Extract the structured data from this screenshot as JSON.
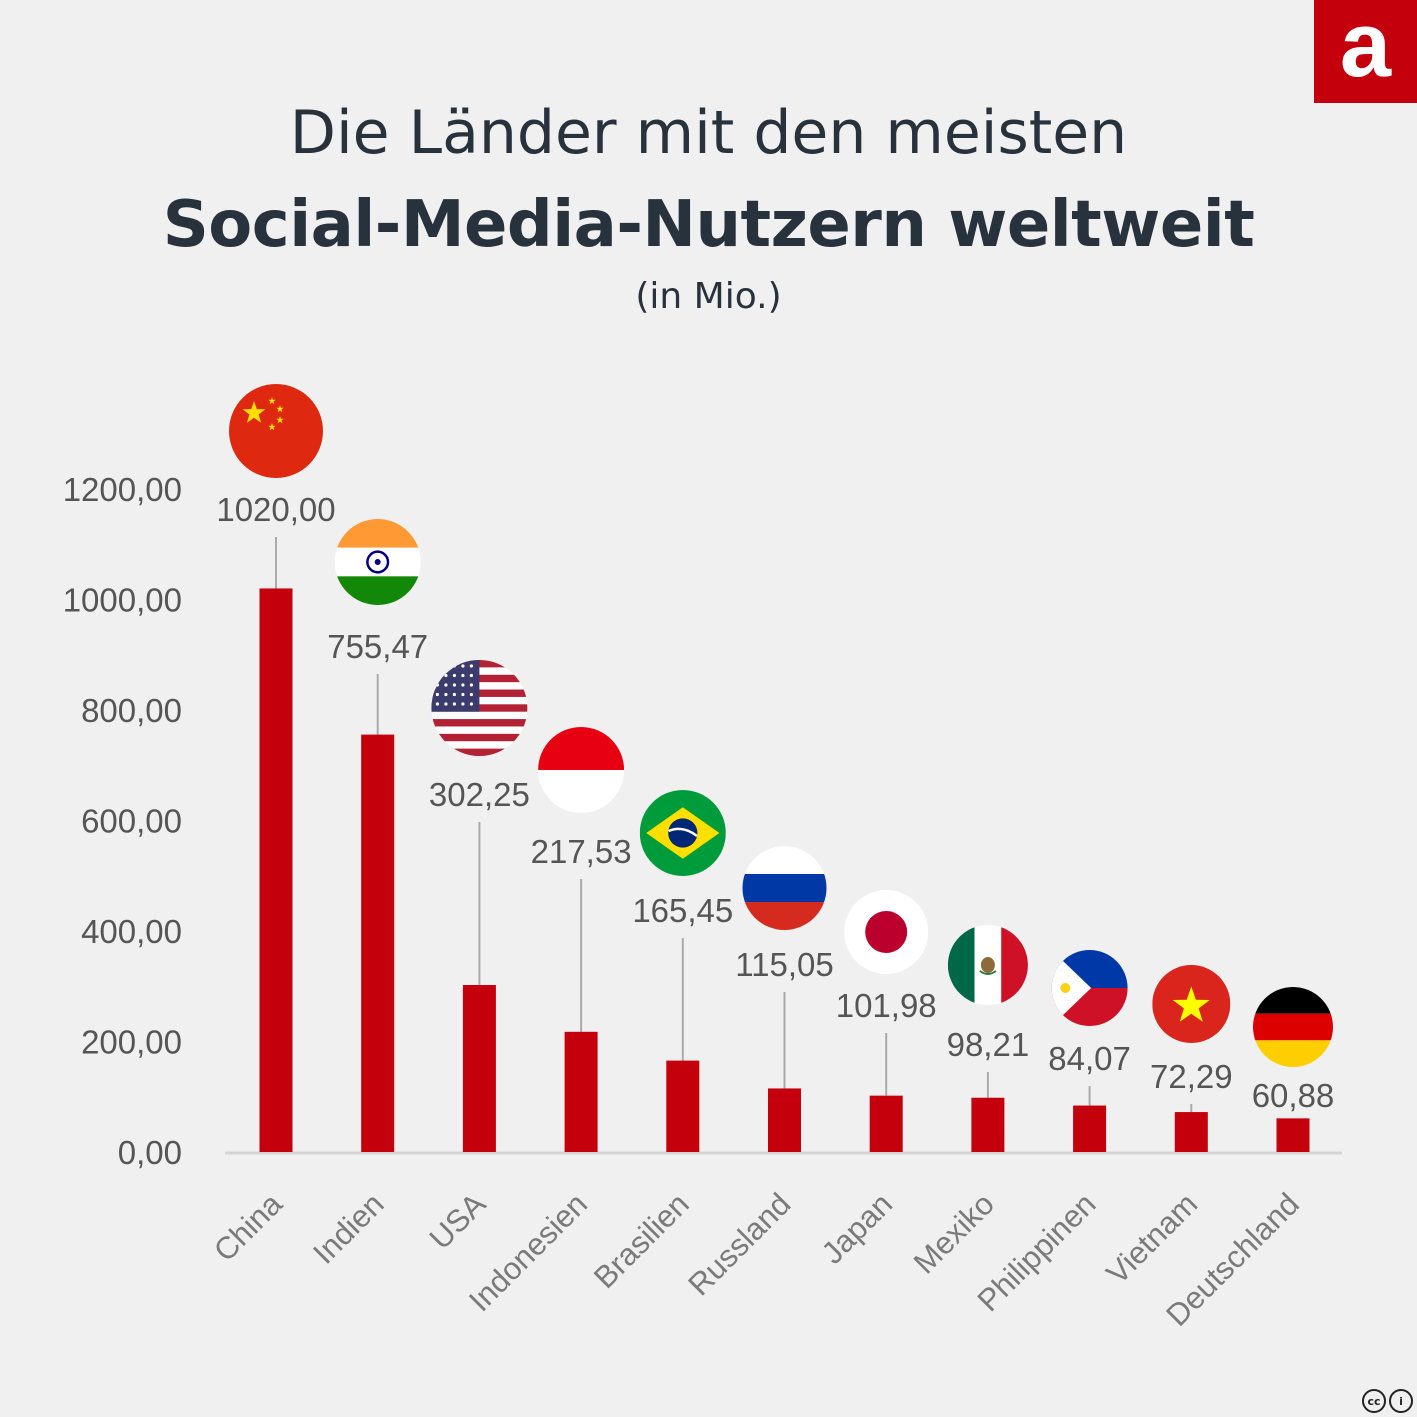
{
  "brand": {
    "logo_letter": "a",
    "color": "#c4000d"
  },
  "title": {
    "line1": "Die Länder mit den meisten",
    "line2": "Social-Media-Nutzern weltweit",
    "subtitle": "(in Mio.)"
  },
  "license": {
    "cc": "cc",
    "by": "i"
  },
  "chart_data": {
    "type": "bar",
    "title": "Die Länder mit den meisten Social-Media-Nutzern weltweit",
    "ylabel": "in Mio.",
    "ylim": [
      0,
      1200
    ],
    "yticks": [
      "0,00",
      "200,00",
      "400,00",
      "600,00",
      "800,00",
      "1000,00",
      "1200,00"
    ],
    "ytick_values": [
      0,
      200,
      400,
      600,
      800,
      1000,
      1200
    ],
    "bar_color": "#c4000d",
    "categories": [
      "China",
      "Indien",
      "USA",
      "Indonesien",
      "Brasilien",
      "Russland",
      "Japan",
      "Mexiko",
      "Philippinen",
      "Vietnam",
      "Deutschland"
    ],
    "values": [
      1020.0,
      755.47,
      302.25,
      217.53,
      165.45,
      115.05,
      101.98,
      98.21,
      84.07,
      72.29,
      60.88
    ],
    "labels": [
      "1020,00",
      "755,47",
      "302,25",
      "217,53",
      "165,45",
      "115,05",
      "101,98",
      "98,21",
      "84,07",
      "72,29",
      "60,88"
    ],
    "flags": [
      "china-flag",
      "india-flag",
      "usa-flag",
      "indonesia-flag",
      "brazil-flag",
      "russia-flag",
      "japan-flag",
      "mexico-flag",
      "philippines-flag",
      "vietnam-flag",
      "germany-flag"
    ]
  }
}
